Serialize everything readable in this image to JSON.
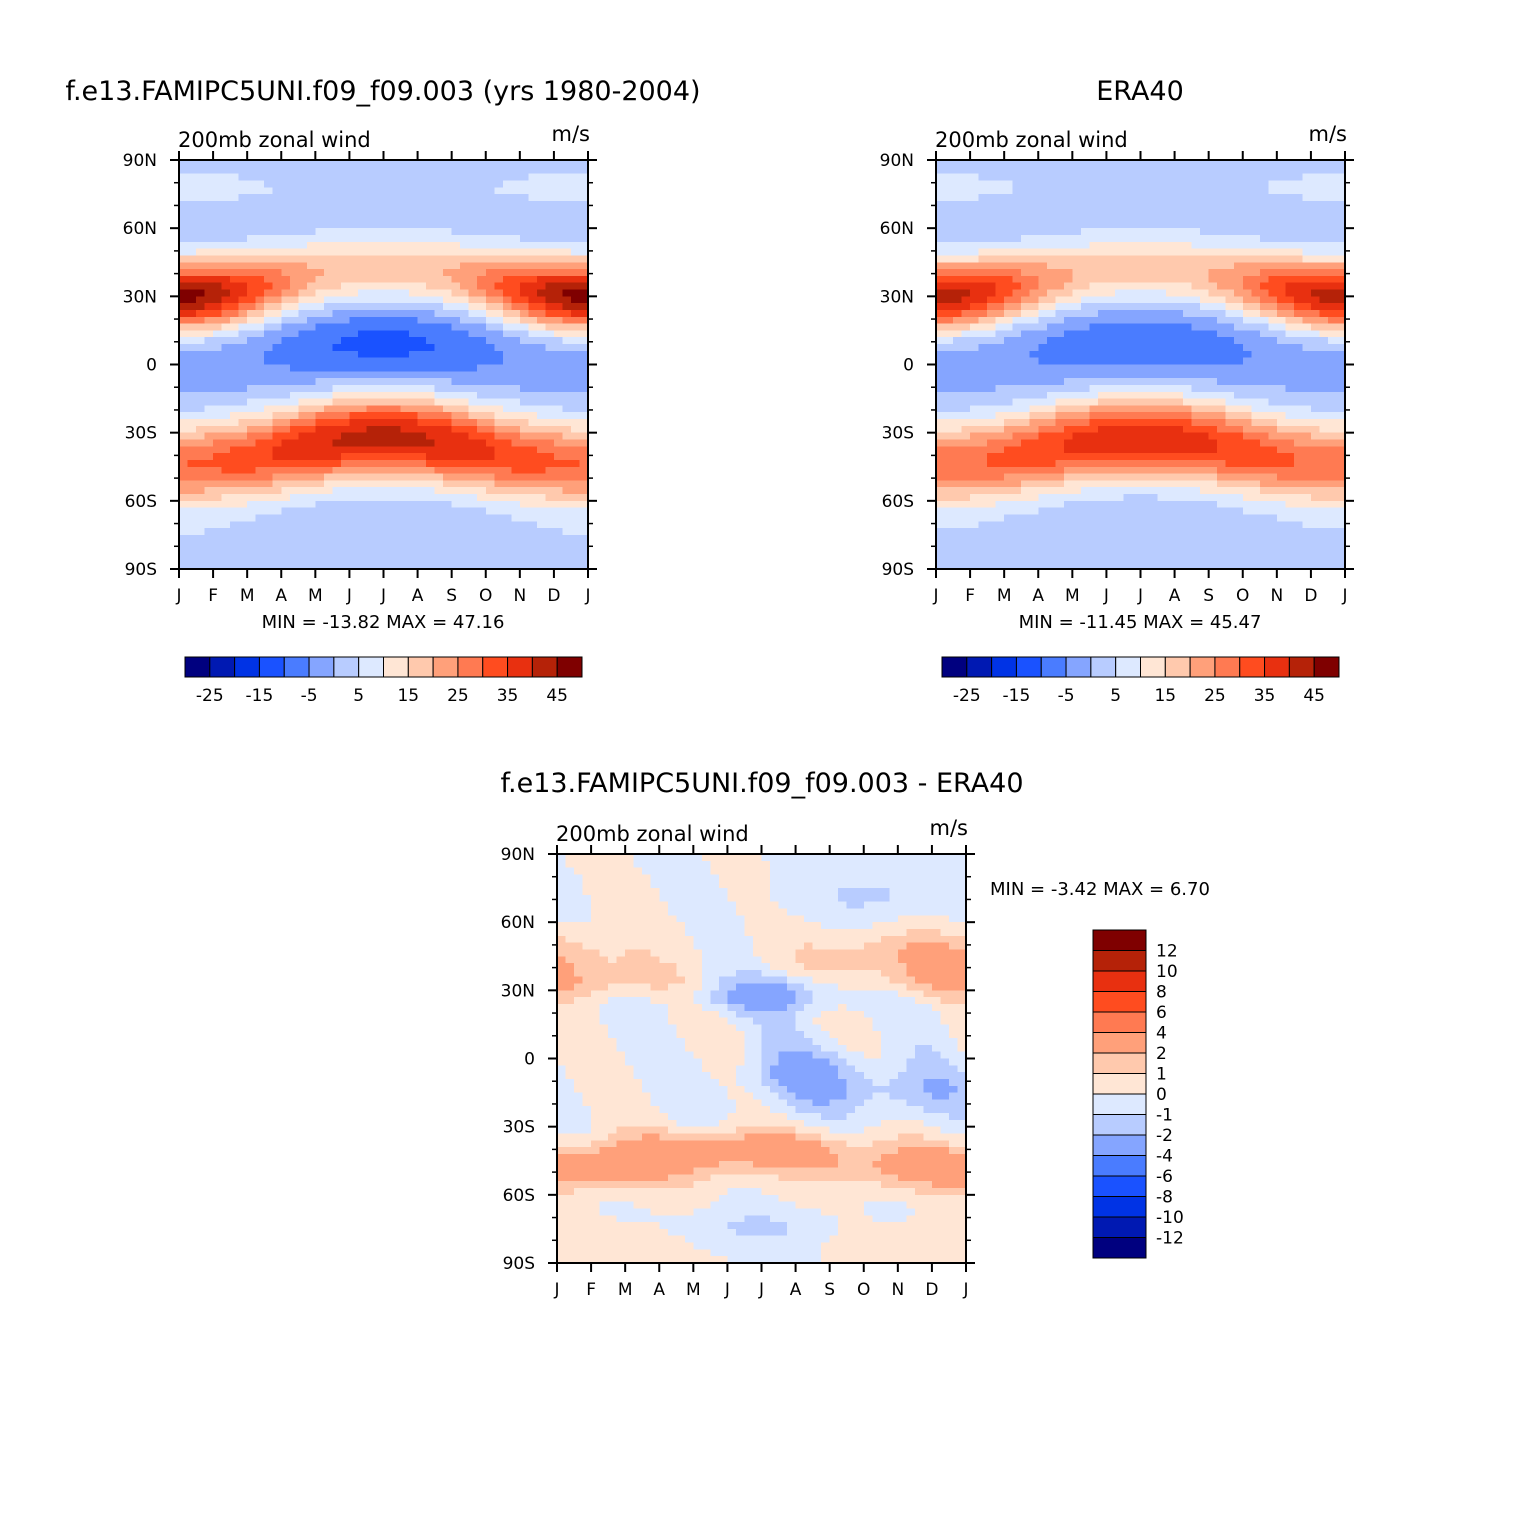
{
  "chart_data": [
    {
      "type": "heatmap",
      "title": "f.e13.FAMIPC5UNI.f09_f09.003 (yrs 1980-2004)",
      "left_label": "200mb  zonal  wind",
      "units": "m/s",
      "x_ticks": [
        "J",
        "F",
        "M",
        "A",
        "M",
        "J",
        "J",
        "A",
        "S",
        "O",
        "N",
        "D",
        "J"
      ],
      "y_ticks": [
        "90N",
        "60N",
        "30N",
        "0",
        "30S",
        "60S",
        "90S"
      ],
      "ylim": [
        -90,
        90
      ],
      "stats": "MIN =  -13.82  MAX =    47.16",
      "colorbar_levels": [
        -25,
        -15,
        -5,
        5,
        15,
        25,
        35,
        45
      ],
      "colorbar_labels": [
        "-25",
        "-15",
        "-5",
        "5",
        "15",
        "25",
        "35",
        "45"
      ],
      "fields": {
        "amp": 1.0,
        "trop_core": -12,
        "jet_nh_max": 47,
        "jet_sh_max": 42
      }
    },
    {
      "type": "heatmap",
      "title": "ERA40",
      "left_label": "200mb  zonal  wind",
      "units": "m/s",
      "x_ticks": [
        "J",
        "F",
        "M",
        "A",
        "M",
        "J",
        "J",
        "A",
        "S",
        "O",
        "N",
        "D",
        "J"
      ],
      "y_ticks": [
        "90N",
        "60N",
        "30N",
        "0",
        "30S",
        "60S",
        "90S"
      ],
      "ylim": [
        -90,
        90
      ],
      "stats": "MIN =  -11.45  MAX =    45.47",
      "colorbar_levels": [
        -25,
        -15,
        -5,
        5,
        15,
        25,
        35,
        45
      ],
      "colorbar_labels": [
        "-25",
        "-15",
        "-5",
        "5",
        "15",
        "25",
        "35",
        "45"
      ],
      "fields": {
        "amp": 0.96,
        "trop_core": -10,
        "jet_nh_max": 45,
        "jet_sh_max": 40
      }
    },
    {
      "type": "heatmap",
      "title": "f.e13.FAMIPC5UNI.f09_f09.003 - ERA40",
      "left_label": "200mb  zonal  wind",
      "units": "m/s",
      "x_ticks": [
        "J",
        "F",
        "M",
        "A",
        "M",
        "J",
        "J",
        "A",
        "S",
        "O",
        "N",
        "D",
        "J"
      ],
      "y_ticks": [
        "90N",
        "60N",
        "30N",
        "0",
        "30S",
        "60S",
        "90S"
      ],
      "ylim": [
        -90,
        90
      ],
      "stats": "MIN =    -3.42  MAX =     6.70",
      "colorbar_levels": [
        -12,
        -10,
        -8,
        -6,
        -4,
        -2,
        -1,
        0,
        1,
        2,
        4,
        6,
        8,
        10,
        12
      ],
      "colorbar_labels": [
        "12",
        "10",
        "8",
        "6",
        "4",
        "2",
        "1",
        "0",
        "-1",
        "-2",
        "-4",
        "-6",
        "-8",
        "-10",
        "-12"
      ],
      "fields": {
        "min": -3.42,
        "max": 6.7
      }
    }
  ],
  "palette": [
    "#00007f",
    "#0019b2",
    "#0033e5",
    "#1a52ff",
    "#4a7cff",
    "#85a5ff",
    "#b8ccff",
    "#dde9ff",
    "#ffe6d5",
    "#ffc9ad",
    "#ffa07a",
    "#ff7a52",
    "#ff4c1f",
    "#e83010",
    "#b52208",
    "#7f0000"
  ]
}
